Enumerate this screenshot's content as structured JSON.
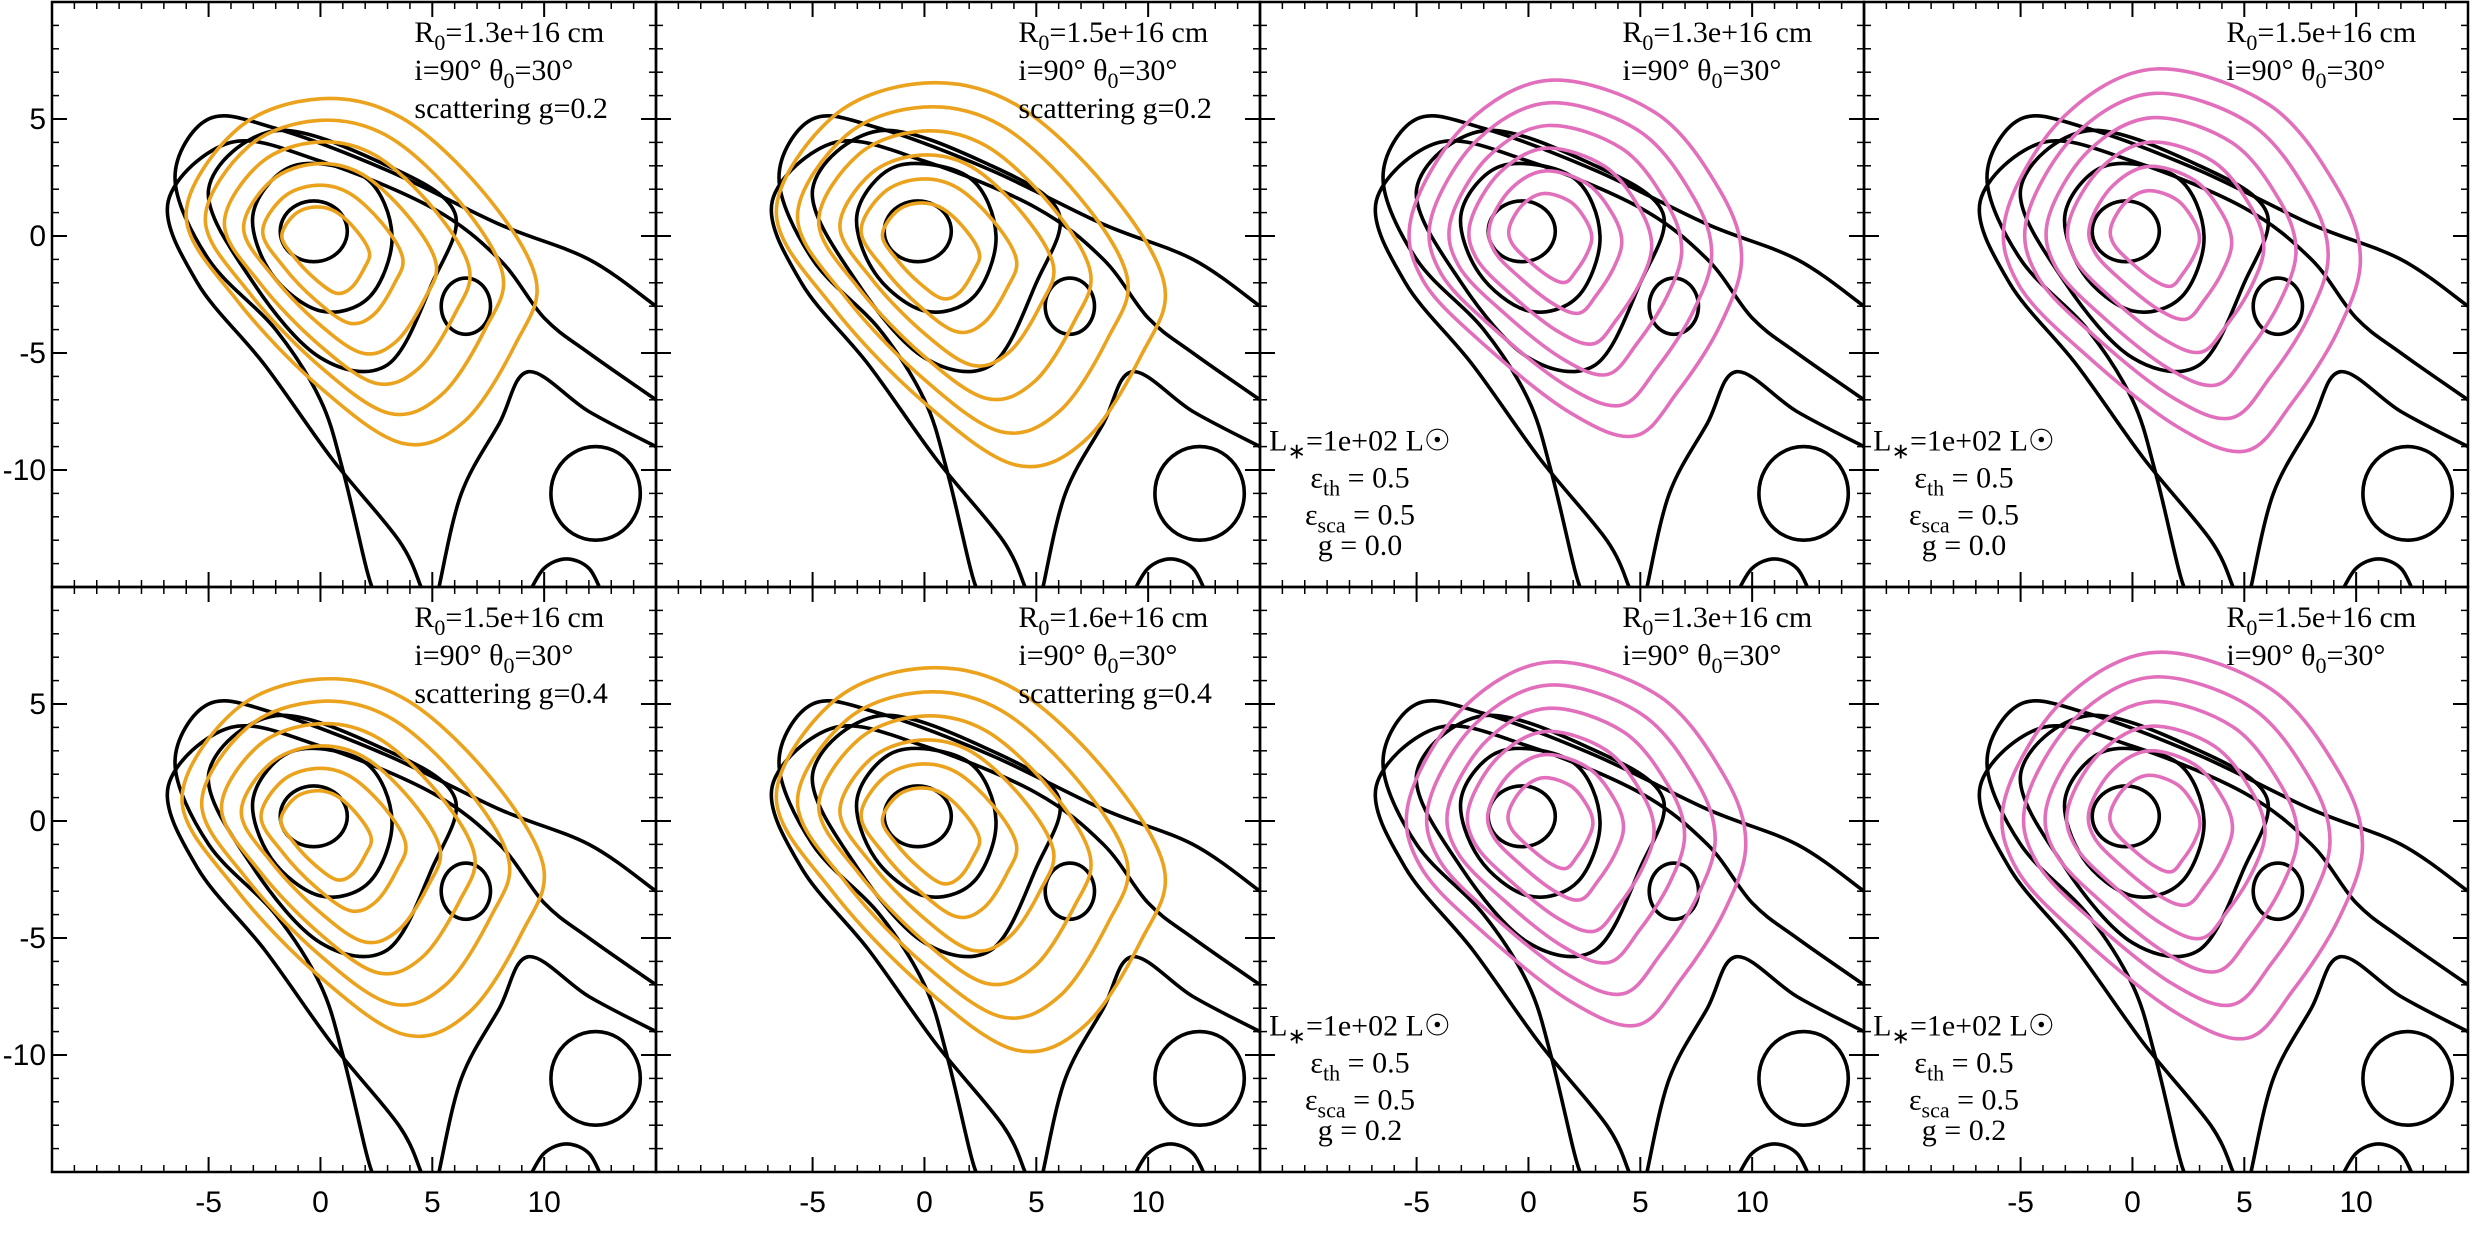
{
  "chart_data": [
    {
      "type": "contour",
      "color": "#eba21c",
      "xlim": [
        -12,
        15
      ],
      "ylim": [
        -15,
        10
      ],
      "xticks": [
        -5,
        0,
        5,
        10
      ],
      "yticks": [
        -10,
        -5,
        0,
        5
      ],
      "annotation_top": [
        [
          "R",
          "0",
          "=1.3e+16 cm"
        ],
        [
          "i=90°   θ",
          "0",
          "=30°"
        ],
        [
          "scattering  g=0.2"
        ]
      ]
    },
    {
      "type": "contour",
      "color": "#eba21c",
      "xlim": [
        -12,
        15
      ],
      "ylim": [
        -15,
        10
      ],
      "xticks": [
        -5,
        0,
        5,
        10
      ],
      "yticks": [
        -10,
        -5,
        0,
        5
      ],
      "annotation_top": [
        [
          "R",
          "0",
          "=1.5e+16 cm"
        ],
        [
          "i=90°   θ",
          "0",
          "=30°"
        ],
        [
          "scattering  g=0.2"
        ]
      ]
    },
    {
      "type": "contour",
      "color": "#e26fbb",
      "xlim": [
        -12,
        15
      ],
      "ylim": [
        -15,
        10
      ],
      "xticks": [
        -5,
        0,
        5,
        10
      ],
      "yticks": [
        -10,
        -5,
        0,
        5
      ],
      "annotation_top": [
        [
          "R",
          "0",
          "=1.3e+16 cm"
        ],
        [
          "i=90°   θ",
          "0",
          "=30°"
        ]
      ],
      "annotation_bottom": [
        [
          "L",
          "∗",
          "=1e+02 L☉"
        ],
        [
          "ε",
          "th",
          " = 0.5"
        ],
        [
          "ε",
          "sca",
          " = 0.5"
        ],
        [
          "g = 0.0"
        ]
      ]
    },
    {
      "type": "contour",
      "color": "#e26fbb",
      "xlim": [
        -12,
        15
      ],
      "ylim": [
        -15,
        10
      ],
      "xticks": [
        -5,
        0,
        5,
        10
      ],
      "yticks": [
        -10,
        -5,
        0,
        5
      ],
      "annotation_top": [
        [
          "R",
          "0",
          "=1.5e+16 cm"
        ],
        [
          "i=90°   θ",
          "0",
          "=30°"
        ]
      ],
      "annotation_bottom": [
        [
          "L",
          "∗",
          "=1e+02 L☉"
        ],
        [
          "ε",
          "th",
          " = 0.5"
        ],
        [
          "ε",
          "sca",
          " = 0.5"
        ],
        [
          "g = 0.0"
        ]
      ]
    },
    {
      "type": "contour",
      "color": "#eba21c",
      "xlim": [
        -12,
        15
      ],
      "ylim": [
        -15,
        10
      ],
      "xticks": [
        -5,
        0,
        5,
        10
      ],
      "yticks": [
        -10,
        -5,
        0,
        5
      ],
      "annotation_top": [
        [
          "R",
          "0",
          "=1.5e+16 cm"
        ],
        [
          "i=90°   θ",
          "0",
          "=30°"
        ],
        [
          "scattering  g=0.4"
        ]
      ]
    },
    {
      "type": "contour",
      "color": "#eba21c",
      "xlim": [
        -12,
        15
      ],
      "ylim": [
        -15,
        10
      ],
      "xticks": [
        -5,
        0,
        5,
        10
      ],
      "yticks": [
        -10,
        -5,
        0,
        5
      ],
      "annotation_top": [
        [
          "R",
          "0",
          "=1.6e+16 cm"
        ],
        [
          "i=90°   θ",
          "0",
          "=30°"
        ],
        [
          "scattering  g=0.4"
        ]
      ]
    },
    {
      "type": "contour",
      "color": "#e26fbb",
      "xlim": [
        -12,
        15
      ],
      "ylim": [
        -15,
        10
      ],
      "xticks": [
        -5,
        0,
        5,
        10
      ],
      "yticks": [
        -10,
        -5,
        0,
        5
      ],
      "annotation_top": [
        [
          "R",
          "0",
          "=1.3e+16 cm"
        ],
        [
          "i=90°   θ",
          "0",
          "=30°"
        ]
      ],
      "annotation_bottom": [
        [
          "L",
          "∗",
          "=1e+02 L☉"
        ],
        [
          "ε",
          "th",
          " = 0.5"
        ],
        [
          "ε",
          "sca",
          " = 0.5"
        ],
        [
          "g = 0.2"
        ]
      ]
    },
    {
      "type": "contour",
      "color": "#e26fbb",
      "xlim": [
        -12,
        15
      ],
      "ylim": [
        -15,
        10
      ],
      "xticks": [
        -5,
        0,
        5,
        10
      ],
      "yticks": [
        -10,
        -5,
        0,
        5
      ],
      "annotation_top": [
        [
          "R",
          "0",
          "=1.5e+16 cm"
        ],
        [
          "i=90°   θ",
          "0",
          "=30°"
        ]
      ],
      "annotation_bottom": [
        [
          "L",
          "∗",
          "=1e+02 L☉"
        ],
        [
          "ε",
          "th",
          " = 0.5"
        ],
        [
          "ε",
          "sca",
          " = 0.5"
        ],
        [
          "g = 0.2"
        ]
      ]
    }
  ]
}
